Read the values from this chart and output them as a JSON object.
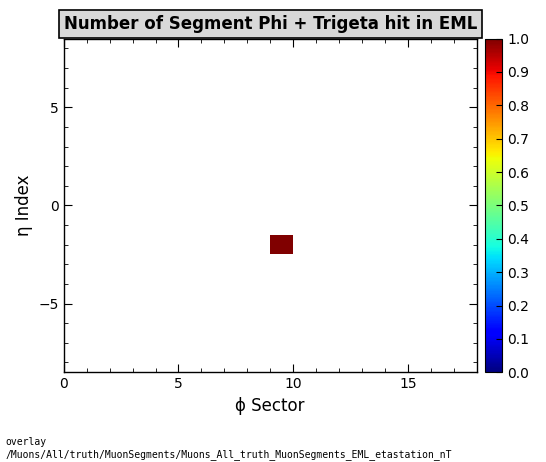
{
  "title": "Number of Segment Phi + Trigeta hit in EML",
  "xlabel": "ϕ Sector",
  "ylabel": "η Index",
  "xlim": [
    0,
    18
  ],
  "ylim": [
    -8.5,
    8.5
  ],
  "xticks": [
    0,
    5,
    10,
    15
  ],
  "yticks": [
    -5,
    0,
    5
  ],
  "colorbar_ticks": [
    0,
    0.1,
    0.2,
    0.3,
    0.4,
    0.5,
    0.6,
    0.7,
    0.8,
    0.9,
    1.0
  ],
  "cmap": "jet",
  "clim": [
    0,
    1
  ],
  "x_edges": [
    0,
    1,
    2,
    3,
    4,
    5,
    6,
    7,
    8,
    9,
    10,
    11,
    12,
    13,
    14,
    15,
    16,
    17,
    18
  ],
  "y_edges": [
    -8.5,
    -7.5,
    -6.5,
    -5.5,
    -4.5,
    -3.5,
    -2.5,
    -1.5,
    -0.5,
    0.5,
    1.5,
    2.5,
    3.5,
    4.5,
    5.5,
    6.5,
    7.5,
    8.5
  ],
  "point_xi": 9,
  "point_yi": 6,
  "point_color_value": 1.0,
  "background_color": "#ffffff",
  "title_fontsize": 12,
  "axis_label_fontsize": 12,
  "tick_fontsize": 10,
  "footer_fontsize": 7,
  "footer_line1": "overlay",
  "footer_line2": "/Muons/All/truth/MuonSegments/Muons_All_truth_MuonSegments_EML_etastation_nT"
}
